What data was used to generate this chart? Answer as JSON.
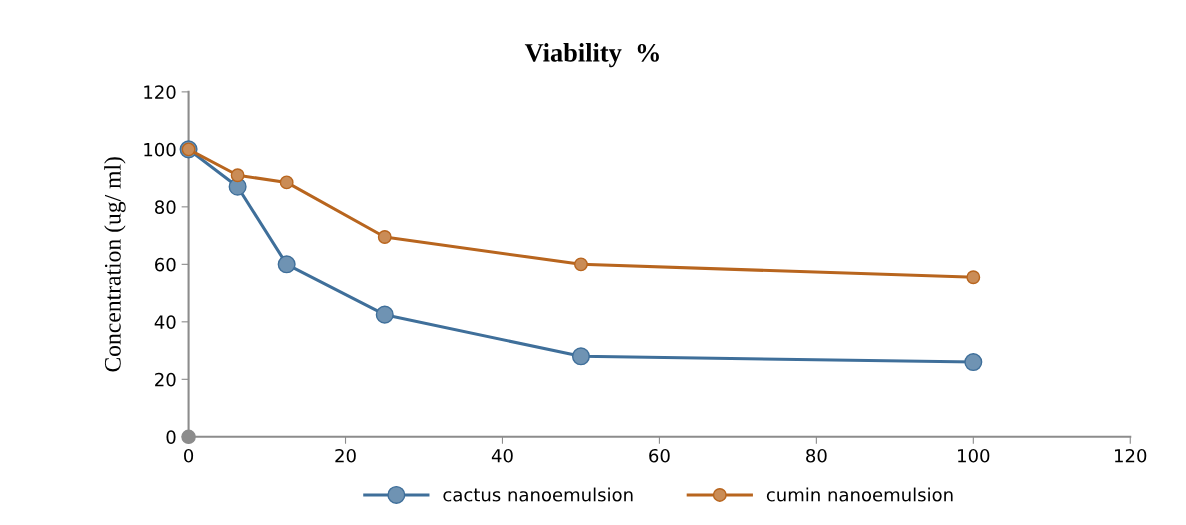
{
  "chart_data": {
    "type": "line",
    "title": "Viability  %",
    "ylabel": "Concentration (ug/ ml)",
    "xlim": [
      0,
      120
    ],
    "xticks": [
      0,
      20,
      40,
      60,
      80,
      100,
      120
    ],
    "ylim": [
      0,
      120
    ],
    "yticks": [
      0,
      20,
      40,
      60,
      80,
      100,
      120
    ],
    "grid": false,
    "legend": "bottom",
    "marker": "circle",
    "line_style": "solid",
    "series": [
      {
        "name": "cactus nanoemulsion",
        "color": "#3f6f9a",
        "x": [
          0,
          6.25,
          12.5,
          25,
          50,
          100
        ],
        "values": [
          100,
          87,
          60,
          42.5,
          28,
          26
        ]
      },
      {
        "name": "cumin nanoemulsion",
        "color": "#b8651e",
        "x": [
          0,
          6.25,
          12.5,
          25,
          50,
          100
        ],
        "values": [
          100,
          91,
          88.5,
          69.5,
          60,
          55.5
        ]
      },
      {
        "type": "scatter",
        "color": "#8c8c8c",
        "x": [
          0
        ],
        "values": [
          0
        ]
      }
    ]
  }
}
